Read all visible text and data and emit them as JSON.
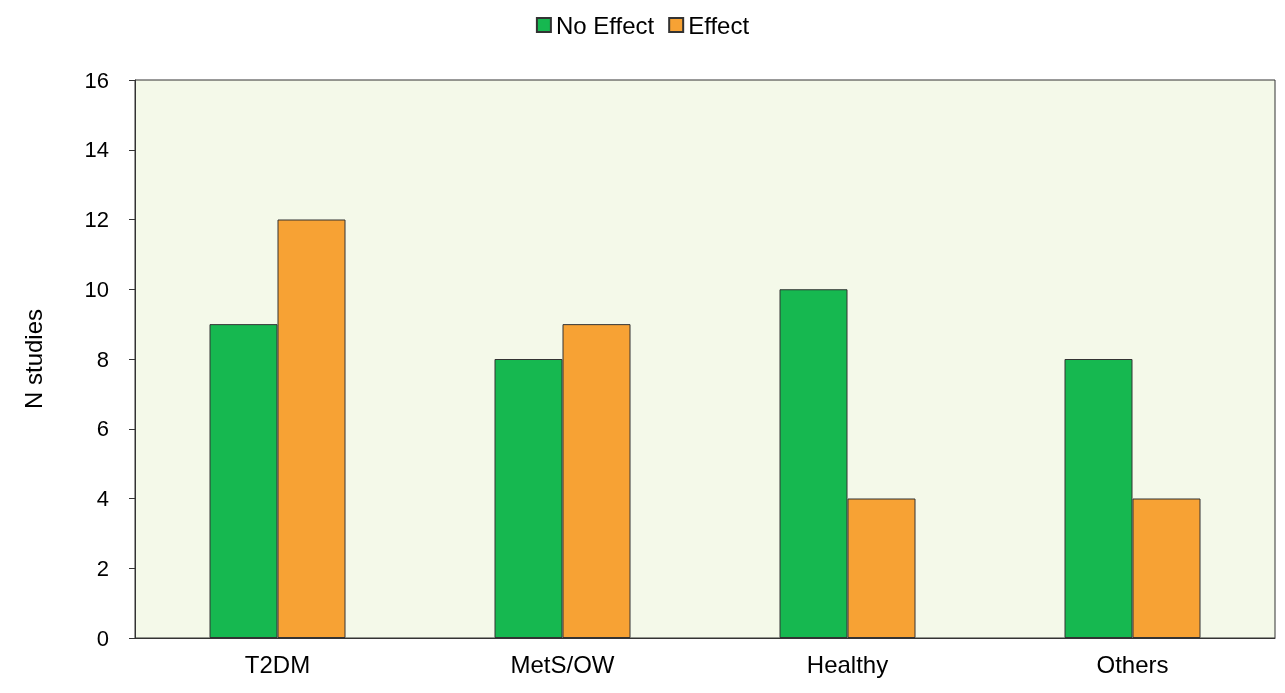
{
  "chart_data": {
    "type": "bar",
    "ylabel": "N studies",
    "categories": [
      "T2DM",
      "MetS/OW",
      "Healthy",
      "Others"
    ],
    "series": [
      {
        "name": "No Effect",
        "color": "#16b850",
        "values": [
          9,
          8,
          10,
          8
        ]
      },
      {
        "name": "Effect",
        "color": "#f7a234",
        "values": [
          12,
          9,
          4,
          4
        ]
      }
    ],
    "ylim": [
      0,
      16
    ],
    "yticks": [
      0,
      2,
      4,
      6,
      8,
      10,
      12,
      14,
      16
    ],
    "legend": "top"
  }
}
